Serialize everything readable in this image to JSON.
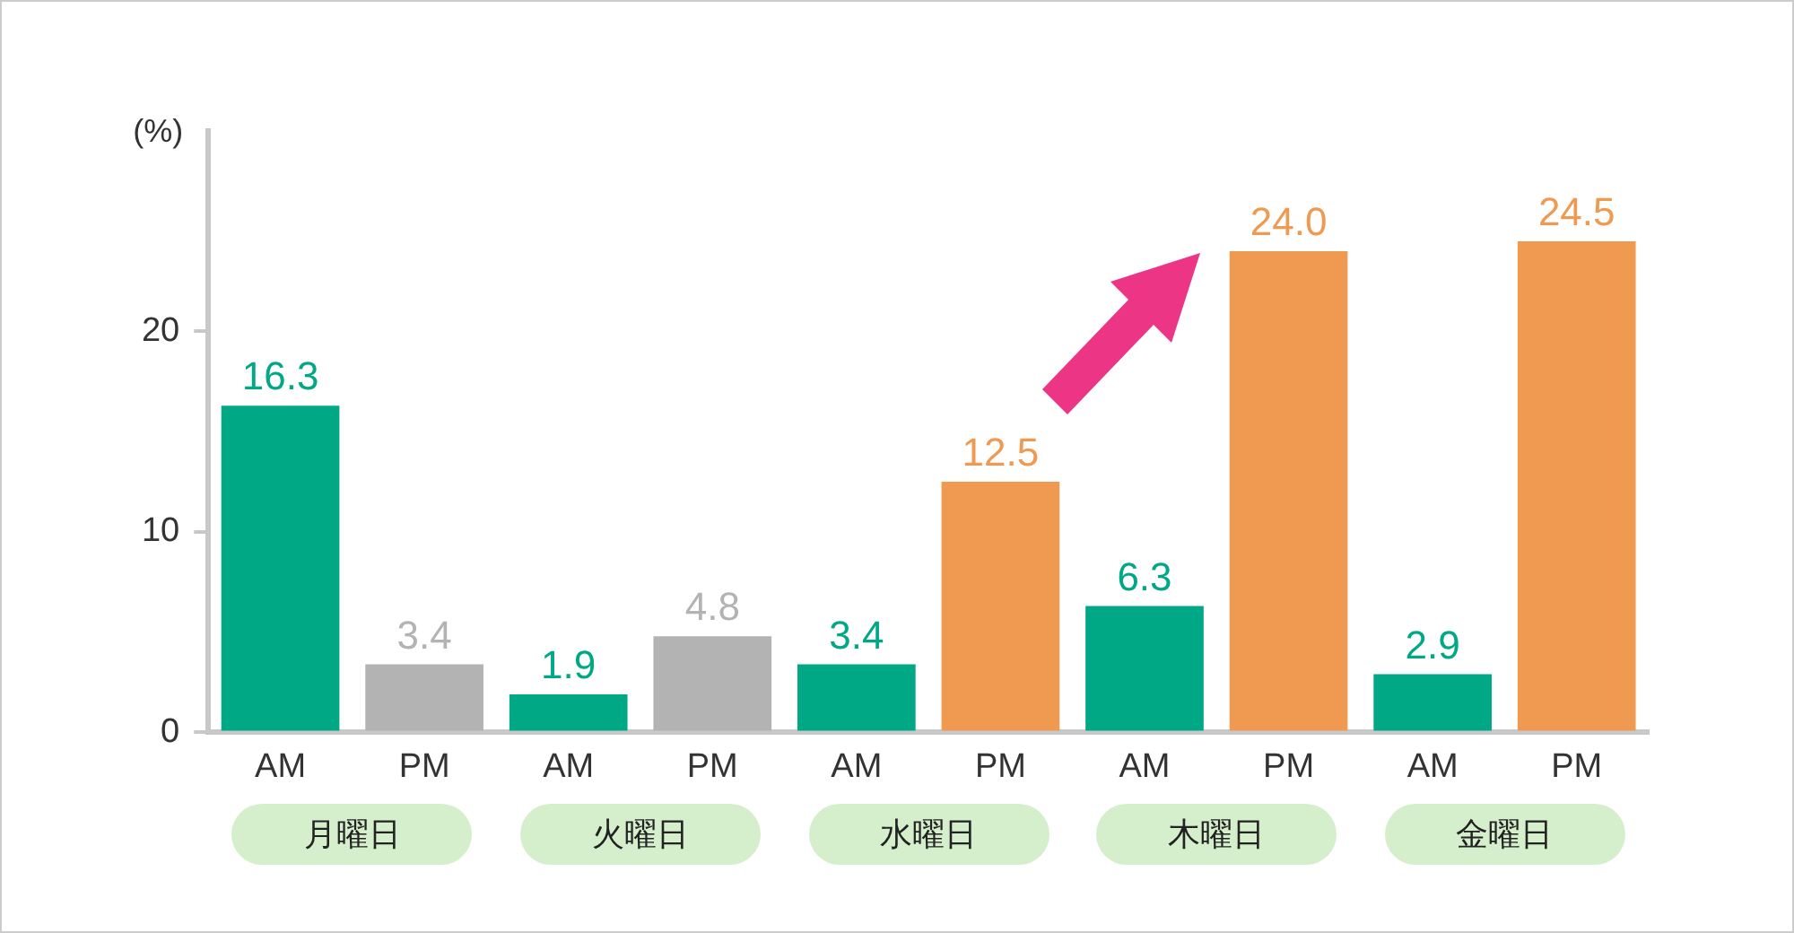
{
  "chart_data": {
    "type": "bar",
    "ylabel": "(%)",
    "categories": [
      "AM",
      "PM",
      "AM",
      "PM",
      "AM",
      "PM",
      "AM",
      "PM",
      "AM",
      "PM"
    ],
    "values": [
      16.3,
      3.4,
      1.9,
      4.8,
      3.4,
      12.5,
      6.3,
      24.0,
      2.9,
      24.5
    ],
    "value_labels": [
      "16.3",
      "3.4",
      "1.9",
      "4.8",
      "3.4",
      "12.5",
      "6.3",
      "24.0",
      "2.9",
      "24.5"
    ],
    "colors": [
      "#00a886",
      "#b3b3b3",
      "#00a886",
      "#b3b3b3",
      "#00a886",
      "#ef9a50",
      "#00a886",
      "#ef9a50",
      "#00a886",
      "#ef9a50"
    ],
    "ylim": [
      0,
      30
    ],
    "yticks": [
      0,
      10,
      20
    ],
    "grid": false,
    "legend": false,
    "annotations": [
      "月曜日",
      "火曜日",
      "水曜日",
      "木曜日",
      "金曜日"
    ]
  }
}
